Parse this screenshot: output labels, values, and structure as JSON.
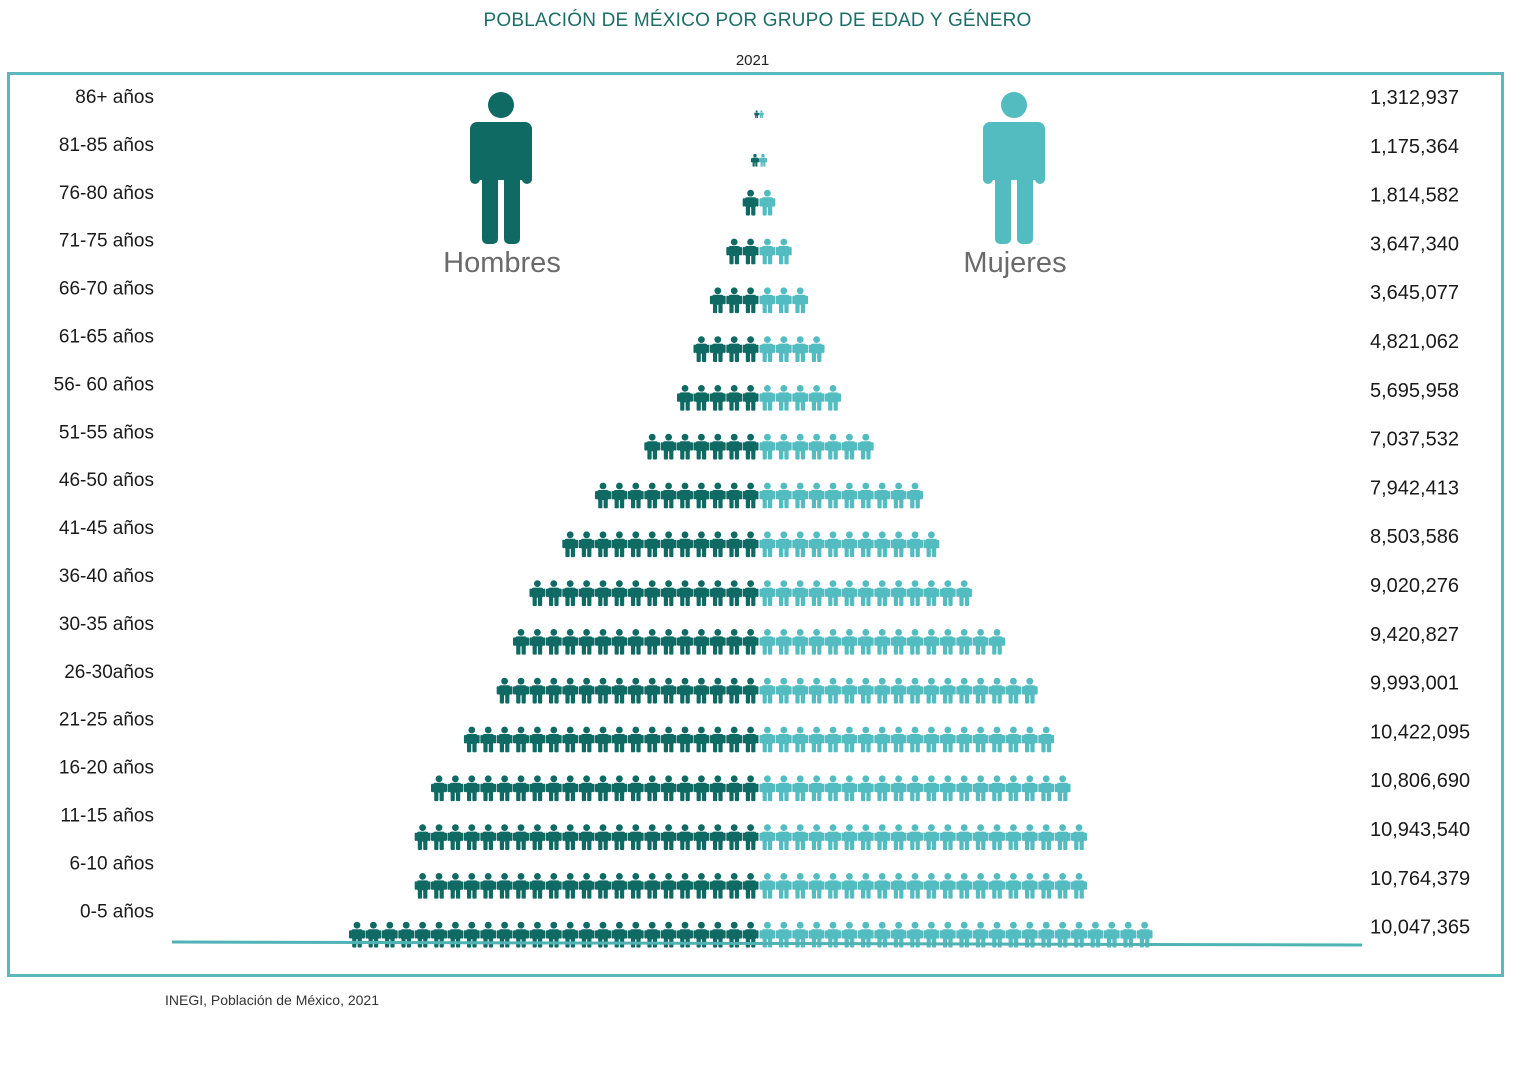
{
  "title": "POBLACIÓN DE MÉXICO POR GRUPO DE EDAD Y GÉNERO",
  "subtitle": "2021",
  "source": "INEGI, Población de México, 2021",
  "legend": {
    "men": "Hombres",
    "women": "Mujeres"
  },
  "colors": {
    "men": "#0f6a64",
    "women": "#52bcc0",
    "frame": "#5ab9bc",
    "axis": "#4fb3b6"
  },
  "chart_data": {
    "type": "bar",
    "categories": [
      "86+ años",
      "81-85 años",
      "76-80 años",
      "71-75 años",
      "66-70 años",
      "61-65 años",
      "56- 60 años",
      "51-55 años",
      "46-50 años",
      "41-45 años",
      "36-40 años",
      "30-35 años",
      "26-30años",
      "21-25 años",
      "16-20 años",
      "11-15 años",
      "6-10 años",
      "0-5 años"
    ],
    "values": [
      1312937,
      1175364,
      1814582,
      3647340,
      3645077,
      4821062,
      5695958,
      7037532,
      7942413,
      8503586,
      9020276,
      9420827,
      9993001,
      10422095,
      10806690,
      10943540,
      10764379,
      10047365
    ],
    "value_labels": [
      "1,312,937",
      "1,175,364",
      "1,814,582",
      "3,647,340",
      "3,645,077",
      "4,821,062",
      "5,695,958",
      "7,037,532",
      "7,942,413",
      "8,503,586",
      "9,020,276",
      "9,420,827",
      "9,993,001",
      "10,422,095",
      "10,806,690",
      "10,943,540",
      "10,764,379",
      "10,047,365"
    ],
    "series": [
      {
        "name": "Hombres",
        "icons": [
          0.3,
          0.5,
          1,
          2,
          3,
          4,
          5,
          7,
          10,
          12,
          14,
          15,
          16,
          18,
          20,
          21,
          21,
          25
        ]
      },
      {
        "name": "Mujeres",
        "icons": [
          0.3,
          0.5,
          1,
          2,
          3,
          4,
          5,
          7,
          10,
          11,
          13,
          15,
          17,
          18,
          19,
          20,
          20,
          24
        ]
      }
    ],
    "grid": false,
    "legend_position": "top"
  }
}
